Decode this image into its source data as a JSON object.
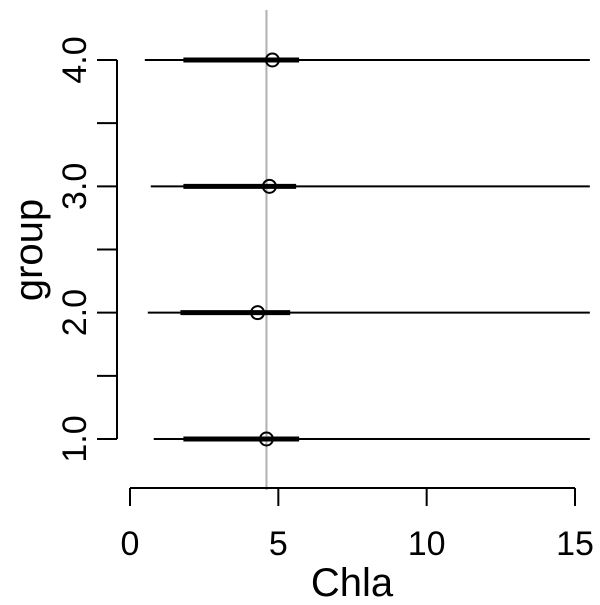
{
  "chart_data": {
    "type": "interval",
    "xlabel": "Chla",
    "ylabel": "group",
    "xlim": [
      0,
      15.5
    ],
    "ylim": [
      0.6,
      4.4
    ],
    "x_ticks": [
      0,
      5,
      10,
      15
    ],
    "x_tick_labels": [
      "0",
      "5",
      "10",
      "15"
    ],
    "y_ticks": [
      1.0,
      1.5,
      2.0,
      2.5,
      3.0,
      3.5,
      4.0
    ],
    "y_tick_labels": [
      "1.0",
      "",
      "2.0",
      "",
      "3.0",
      "",
      "4.0"
    ],
    "reference_x": 4.6,
    "series": [
      {
        "group": 1.0,
        "point": 4.6,
        "inner": [
          1.8,
          5.7
        ],
        "outer": [
          0.8,
          15.5
        ]
      },
      {
        "group": 2.0,
        "point": 4.3,
        "inner": [
          1.7,
          5.4
        ],
        "outer": [
          0.6,
          15.5
        ]
      },
      {
        "group": 3.0,
        "point": 4.7,
        "inner": [
          1.8,
          5.6
        ],
        "outer": [
          0.7,
          15.5
        ]
      },
      {
        "group": 4.0,
        "point": 4.8,
        "inner": [
          1.8,
          5.7
        ],
        "outer": [
          0.5,
          15.5
        ]
      }
    ],
    "colors": {
      "line": "#000000",
      "reference": "#b0b0b0"
    }
  }
}
